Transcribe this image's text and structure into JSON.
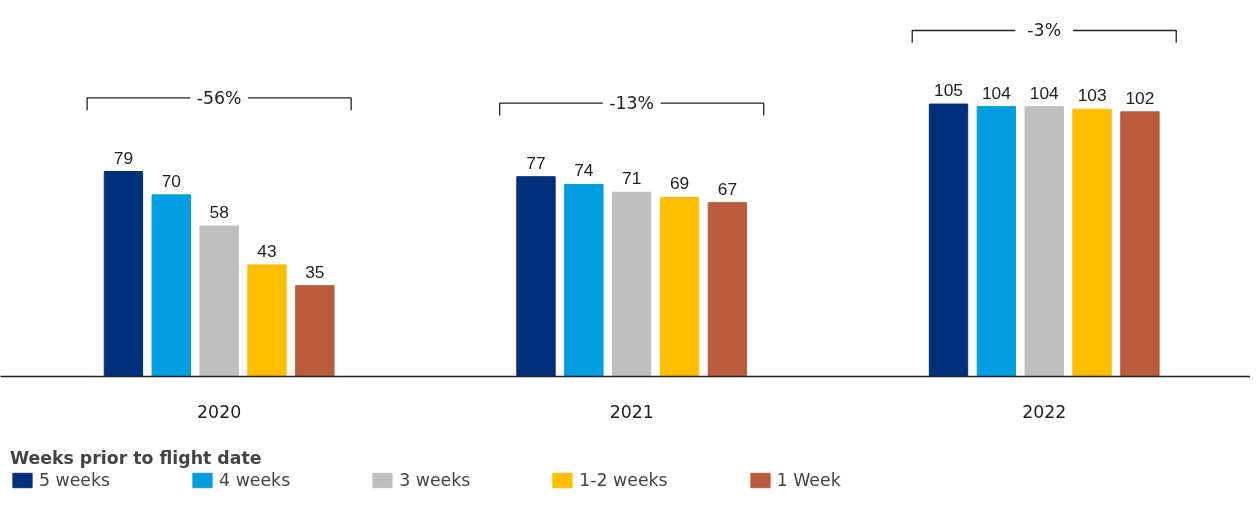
{
  "chart_data": {
    "type": "bar",
    "categories": [
      "2020",
      "2021",
      "2022"
    ],
    "legend_title": "Weeks prior to flight date",
    "legend": "bottom",
    "data_labels": true,
    "grid": false,
    "series": [
      {
        "name": "5 weeks",
        "color": "#002f7b",
        "values": [
          79,
          77,
          105
        ]
      },
      {
        "name": "4 weeks",
        "color": "#009de0",
        "values": [
          70,
          74,
          104
        ]
      },
      {
        "name": "3 weeks",
        "color": "#bfbfbf",
        "values": [
          58,
          71,
          104
        ]
      },
      {
        "name": "1-2 weeks",
        "color": "#ffbe00",
        "values": [
          43,
          69,
          103
        ]
      },
      {
        "name": "1 Week",
        "color": "#b95b3c",
        "values": [
          35,
          67,
          102
        ]
      }
    ],
    "annotations": [
      "-56%",
      "-13%",
      "-3%"
    ]
  }
}
